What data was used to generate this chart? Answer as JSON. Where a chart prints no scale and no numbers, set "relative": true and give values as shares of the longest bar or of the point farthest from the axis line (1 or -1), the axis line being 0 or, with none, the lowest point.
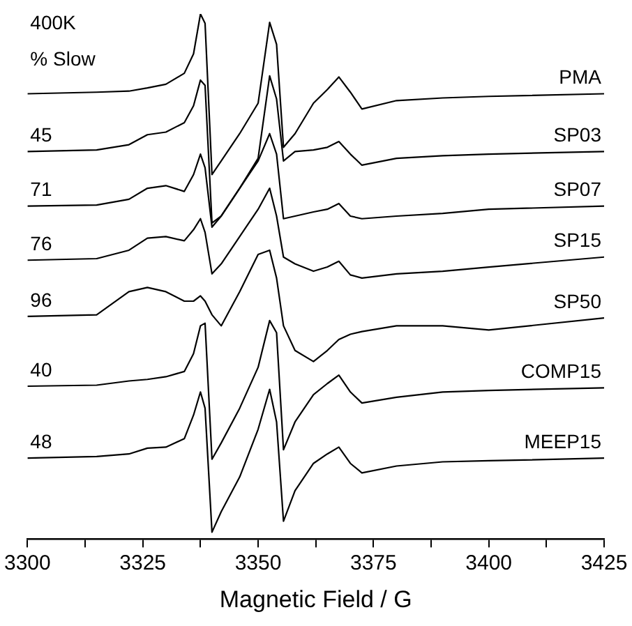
{
  "chart_data": {
    "type": "line",
    "relative": true,
    "xlabel": "Magnetic Field / G",
    "xlim": [
      3300,
      3425
    ],
    "xticks": [
      3300,
      {
        "value": 3312.5,
        "label": null
      },
      3325,
      {
        "value": 3337.5,
        "label": null
      },
      3350,
      {
        "value": 3362.5,
        "label": null
      },
      3375,
      {
        "value": 3387.5,
        "label": null
      },
      3400,
      {
        "value": 3412.5,
        "label": null
      },
      3425
    ],
    "x": [
      3300,
      3315,
      3322,
      3326,
      3330,
      3334,
      3336,
      3337.5,
      3338.5,
      3340,
      3342,
      3346,
      3350,
      3352.5,
      3354,
      3355.5,
      3358,
      3362,
      3365,
      3367.5,
      3370,
      3372.5,
      3380,
      3390,
      3400,
      3425
    ],
    "grid": false,
    "legend": false,
    "marker": "none",
    "line_style": "solid",
    "annotations": [
      "400K",
      "% Slow",
      {
        "text": "45",
        "y": 0.738
      },
      {
        "text": "71",
        "y": 0.634
      },
      {
        "text": "76",
        "y": 0.531
      },
      {
        "text": "96",
        "y": 0.424
      },
      {
        "text": "40",
        "y": 0.291
      },
      {
        "text": "48",
        "y": 0.154
      }
    ],
    "series": [
      {
        "name": "PMA",
        "color": "#000000",
        "values": [
          0.848,
          0.851,
          0.853,
          0.859,
          0.866,
          0.887,
          0.924,
          1.0,
          0.982,
          0.694,
          0.72,
          0.772,
          0.83,
          0.984,
          0.942,
          0.746,
          0.772,
          0.83,
          0.856,
          0.88,
          0.851,
          0.819,
          0.835,
          0.84,
          0.843,
          0.848
        ]
      },
      {
        "name": "SP03",
        "color": "#000000",
        "values": [
          0.738,
          0.741,
          0.751,
          0.77,
          0.775,
          0.793,
          0.825,
          0.874,
          0.864,
          0.602,
          0.615,
          0.668,
          0.725,
          0.882,
          0.838,
          0.72,
          0.738,
          0.741,
          0.746,
          0.757,
          0.733,
          0.712,
          0.725,
          0.73,
          0.733,
          0.738
        ]
      },
      {
        "name": "SP07",
        "color": "#000000",
        "values": [
          0.634,
          0.636,
          0.647,
          0.668,
          0.673,
          0.662,
          0.694,
          0.733,
          0.707,
          0.594,
          0.615,
          0.668,
          0.72,
          0.772,
          0.733,
          0.61,
          0.615,
          0.623,
          0.628,
          0.639,
          0.615,
          0.61,
          0.615,
          0.62,
          0.628,
          0.634
        ]
      },
      {
        "name": "SP15",
        "color": "#000000",
        "values": [
          0.531,
          0.534,
          0.55,
          0.573,
          0.576,
          0.568,
          0.589,
          0.61,
          0.584,
          0.505,
          0.524,
          0.576,
          0.628,
          0.668,
          0.615,
          0.537,
          0.524,
          0.51,
          0.518,
          0.529,
          0.503,
          0.497,
          0.505,
          0.51,
          0.518,
          0.537
        ]
      },
      {
        "name": "SP50",
        "color": "#000000",
        "values": [
          0.424,
          0.427,
          0.471,
          0.479,
          0.471,
          0.453,
          0.453,
          0.463,
          0.453,
          0.427,
          0.406,
          0.471,
          0.542,
          0.55,
          0.497,
          0.406,
          0.359,
          0.338,
          0.359,
          0.38,
          0.39,
          0.395,
          0.406,
          0.406,
          0.398,
          0.421
        ]
      },
      {
        "name": "COMP15",
        "color": "#000000",
        "values": [
          0.291,
          0.293,
          0.301,
          0.304,
          0.309,
          0.319,
          0.353,
          0.406,
          0.411,
          0.152,
          0.183,
          0.249,
          0.327,
          0.416,
          0.393,
          0.17,
          0.223,
          0.275,
          0.296,
          0.312,
          0.28,
          0.259,
          0.27,
          0.28,
          0.283,
          0.288
        ]
      },
      {
        "name": "MEEP15",
        "color": "#000000",
        "values": [
          0.154,
          0.157,
          0.162,
          0.173,
          0.175,
          0.191,
          0.236,
          0.28,
          0.249,
          0.013,
          0.052,
          0.118,
          0.209,
          0.285,
          0.223,
          0.034,
          0.092,
          0.144,
          0.162,
          0.175,
          0.144,
          0.126,
          0.139,
          0.147,
          0.149,
          0.154
        ]
      }
    ]
  }
}
